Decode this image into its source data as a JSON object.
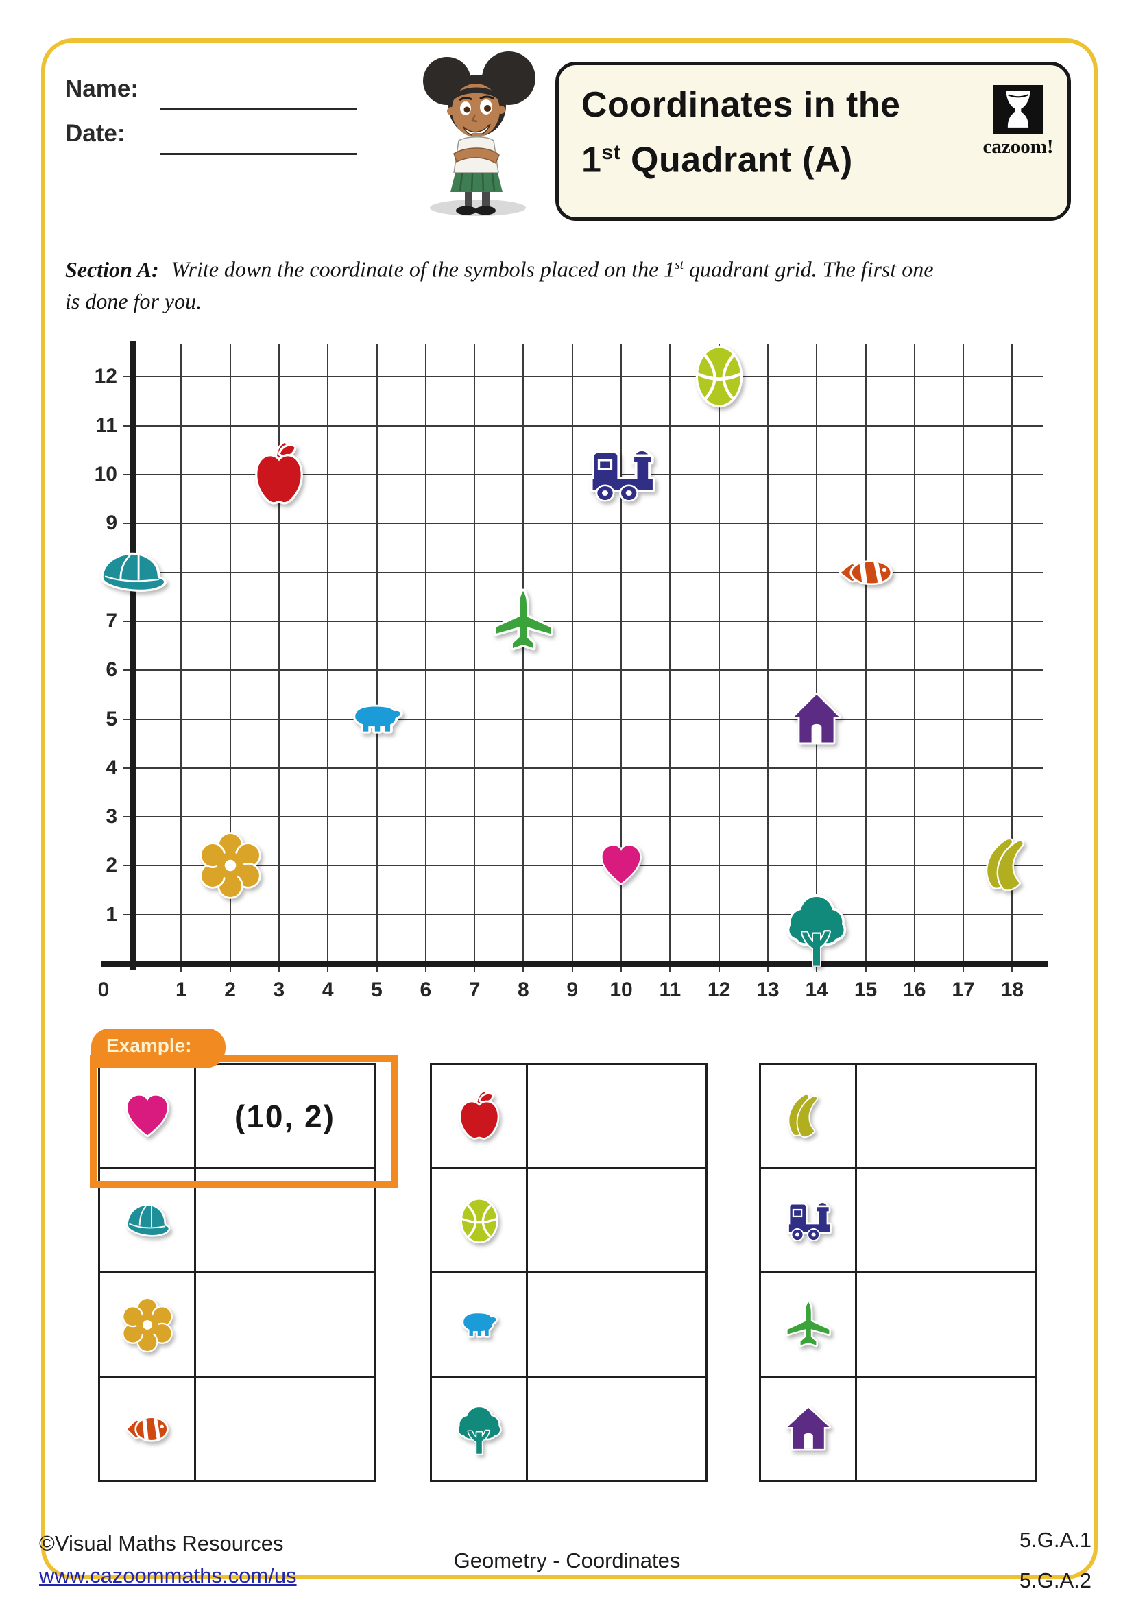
{
  "header": {
    "name_label": "Name:",
    "date_label": "Date:",
    "title_line1": "Coordinates in the",
    "title_line2_prefix": "1",
    "title_line2_sup": "st",
    "title_line2_rest": " Quadrant (A)",
    "logo_text": "cazoom!"
  },
  "section": {
    "label": "Section A:",
    "text_before_sup": "Write down the coordinate of the symbols placed on the 1",
    "sup": "st",
    "text_after_sup": " quadrant grid. The first one",
    "line2": "is done for you."
  },
  "chart_data": {
    "type": "scatter",
    "title": "",
    "xlabel": "",
    "ylabel": "",
    "xlim": [
      0,
      18.6
    ],
    "ylim": [
      0,
      12.65
    ],
    "grid": true,
    "x_tick_labels": [
      "0",
      "1",
      "2",
      "3",
      "4",
      "5",
      "6",
      "7",
      "8",
      "9",
      "10",
      "11",
      "12",
      "13",
      "14",
      "15",
      "16",
      "17",
      "18"
    ],
    "y_tick_labels": [
      "1",
      "2",
      "3",
      "4",
      "5",
      "6",
      "7",
      "8",
      "9",
      "10",
      "11",
      "12"
    ],
    "points": [
      {
        "symbol": "cap",
        "x": 0,
        "y": 8
      },
      {
        "symbol": "flower",
        "x": 2,
        "y": 2
      },
      {
        "symbol": "apple",
        "x": 3,
        "y": 10
      },
      {
        "symbol": "bear",
        "x": 5,
        "y": 5
      },
      {
        "symbol": "airplane",
        "x": 8,
        "y": 7
      },
      {
        "symbol": "train",
        "x": 10,
        "y": 10
      },
      {
        "symbol": "heart",
        "x": 10,
        "y": 2
      },
      {
        "symbol": "basketball",
        "x": 12,
        "y": 12
      },
      {
        "symbol": "house",
        "x": 14,
        "y": 5
      },
      {
        "symbol": "tree",
        "x": 14,
        "y": 0
      },
      {
        "symbol": "fish",
        "x": 15,
        "y": 8
      },
      {
        "symbol": "banana",
        "x": 18,
        "y": 2
      }
    ]
  },
  "symbol_colors": {
    "heart": "#d91a7f",
    "apple": "#cb161d",
    "basketball": "#b0c81f",
    "train": "#312e86",
    "cap": "#1e8e98",
    "fish": "#ce4a12",
    "airplane": "#3ca23c",
    "bear": "#1c9bd9",
    "house": "#5c2c85",
    "flower": "#d9a428",
    "banana": "#b1ae20",
    "tree": "#11897b"
  },
  "example_tab_label": "Example:",
  "tables": [
    {
      "example": true,
      "rows": [
        {
          "symbol": "heart",
          "answer": "(10, 2)"
        },
        {
          "symbol": "cap",
          "answer": ""
        },
        {
          "symbol": "flower",
          "answer": ""
        },
        {
          "symbol": "fish",
          "answer": ""
        }
      ]
    },
    {
      "example": false,
      "rows": [
        {
          "symbol": "apple",
          "answer": ""
        },
        {
          "symbol": "basketball",
          "answer": ""
        },
        {
          "symbol": "bear",
          "answer": ""
        },
        {
          "symbol": "tree",
          "answer": ""
        }
      ]
    },
    {
      "example": false,
      "rows": [
        {
          "symbol": "banana",
          "answer": ""
        },
        {
          "symbol": "train",
          "answer": ""
        },
        {
          "symbol": "airplane",
          "answer": ""
        },
        {
          "symbol": "house",
          "answer": ""
        }
      ]
    }
  ],
  "footer": {
    "credit": "©Visual Maths Resources",
    "url": "www.cazoommaths.com/us",
    "center": "Geometry - Coordinates",
    "standard1": "5.G.A.1",
    "standard2": "5.G.A.2"
  },
  "colors": {
    "frame_yellow": "#eec133",
    "example_orange": "#f18a21",
    "title_box_bg": "#fbf7e7",
    "link_blue": "#2626ab"
  }
}
